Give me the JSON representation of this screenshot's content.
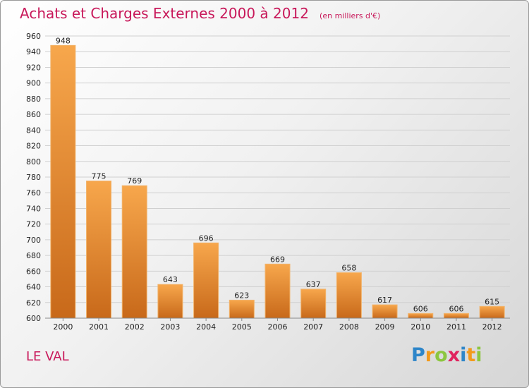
{
  "header": {
    "title": "Achats et Charges Externes 2000 à 2012",
    "subtitle": "(en milliers d'€)"
  },
  "commune": "LE VAL",
  "logo": {
    "letters": [
      "P",
      "r",
      "o",
      "x",
      "i",
      "t",
      "i"
    ],
    "colors": [
      "#2e86c9",
      "#f39a1b",
      "#8cc63f",
      "#e0245e",
      "#2e86c9",
      "#f39a1b",
      "#8cc63f"
    ]
  },
  "colors": {
    "title": "#c8185a",
    "bar_light": "#f7a74c",
    "bar_dark": "#c8691a"
  },
  "chart_data": {
    "type": "bar",
    "categories": [
      "2000",
      "2001",
      "2002",
      "2003",
      "2004",
      "2005",
      "2006",
      "2007",
      "2008",
      "2009",
      "2010",
      "2011",
      "2012"
    ],
    "values": [
      948,
      775,
      769,
      643,
      696,
      623,
      669,
      637,
      658,
      617,
      606,
      606,
      615
    ],
    "value_labels": [
      "948",
      "775",
      "769",
      "643",
      "696",
      "623",
      "669",
      "637",
      "658",
      "617",
      "606",
      "606",
      "615"
    ],
    "ylim": [
      600,
      960
    ],
    "yticks": [
      "600",
      "620",
      "640",
      "660",
      "680",
      "700",
      "720",
      "740",
      "760",
      "780",
      "800",
      "820",
      "840",
      "860",
      "880",
      "900",
      "920",
      "940",
      "960"
    ],
    "grid": true
  }
}
